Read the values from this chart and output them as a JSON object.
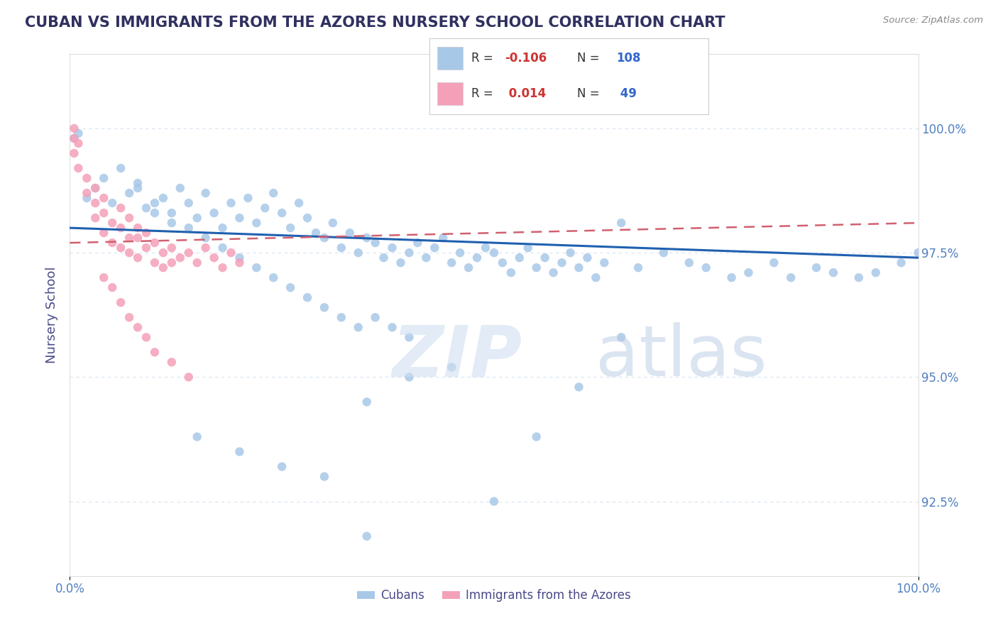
{
  "title": "CUBAN VS IMMIGRANTS FROM THE AZORES NURSERY SCHOOL CORRELATION CHART",
  "source": "Source: ZipAtlas.com",
  "ylabel": "Nursery School",
  "legend_label1": "Cubans",
  "legend_label2": "Immigrants from the Azores",
  "R1": -0.106,
  "N1": 108,
  "R2": 0.014,
  "N2": 49,
  "color_blue": "#a8c8e8",
  "color_pink": "#f4a0b8",
  "color_line_blue": "#2060b0",
  "color_line_pink": "#d06070",
  "color_title": "#303060",
  "color_axis_label": "#4a4a8a",
  "color_tick": "#5080c0",
  "color_grid": "#d8e4f0",
  "watermark_zip": "ZIP",
  "watermark_atlas": "atlas",
  "blue_x": [
    0.005,
    0.01,
    0.02,
    0.03,
    0.04,
    0.05,
    0.06,
    0.07,
    0.08,
    0.09,
    0.1,
    0.11,
    0.12,
    0.13,
    0.14,
    0.15,
    0.16,
    0.17,
    0.18,
    0.19,
    0.2,
    0.21,
    0.22,
    0.23,
    0.24,
    0.25,
    0.26,
    0.27,
    0.28,
    0.29,
    0.3,
    0.31,
    0.32,
    0.33,
    0.34,
    0.35,
    0.36,
    0.37,
    0.38,
    0.39,
    0.4,
    0.41,
    0.42,
    0.43,
    0.44,
    0.45,
    0.46,
    0.47,
    0.48,
    0.49,
    0.5,
    0.51,
    0.52,
    0.53,
    0.54,
    0.55,
    0.56,
    0.57,
    0.58,
    0.59,
    0.6,
    0.61,
    0.62,
    0.63,
    0.65,
    0.67,
    0.7,
    0.73,
    0.75,
    0.78,
    0.8,
    0.83,
    0.85,
    0.88,
    0.9,
    0.93,
    0.95,
    0.98,
    1.0,
    0.08,
    0.1,
    0.12,
    0.14,
    0.16,
    0.18,
    0.2,
    0.22,
    0.24,
    0.26,
    0.28,
    0.3,
    0.32,
    0.34,
    0.36,
    0.38,
    0.4,
    0.15,
    0.2,
    0.25,
    0.3,
    0.35,
    0.4,
    0.45,
    0.5,
    0.55,
    0.6,
    0.65,
    0.35
  ],
  "blue_y": [
    99.8,
    99.9,
    98.6,
    98.8,
    99.0,
    98.5,
    99.2,
    98.7,
    98.9,
    98.4,
    98.3,
    98.6,
    98.1,
    98.8,
    98.5,
    98.2,
    98.7,
    98.3,
    98.0,
    98.5,
    98.2,
    98.6,
    98.1,
    98.4,
    98.7,
    98.3,
    98.0,
    98.5,
    98.2,
    97.9,
    97.8,
    98.1,
    97.6,
    97.9,
    97.5,
    97.8,
    97.7,
    97.4,
    97.6,
    97.3,
    97.5,
    97.7,
    97.4,
    97.6,
    97.8,
    97.3,
    97.5,
    97.2,
    97.4,
    97.6,
    97.5,
    97.3,
    97.1,
    97.4,
    97.6,
    97.2,
    97.4,
    97.1,
    97.3,
    97.5,
    97.2,
    97.4,
    97.0,
    97.3,
    98.1,
    97.2,
    97.5,
    97.3,
    97.2,
    97.0,
    97.1,
    97.3,
    97.0,
    97.2,
    97.1,
    97.0,
    97.1,
    97.3,
    97.5,
    98.8,
    98.5,
    98.3,
    98.0,
    97.8,
    97.6,
    97.4,
    97.2,
    97.0,
    96.8,
    96.6,
    96.4,
    96.2,
    96.0,
    96.2,
    96.0,
    95.8,
    93.8,
    93.5,
    93.2,
    93.0,
    94.5,
    95.0,
    95.2,
    92.5,
    93.8,
    94.8,
    95.8,
    91.8
  ],
  "pink_x": [
    0.005,
    0.005,
    0.005,
    0.01,
    0.01,
    0.02,
    0.02,
    0.03,
    0.03,
    0.03,
    0.04,
    0.04,
    0.04,
    0.05,
    0.05,
    0.06,
    0.06,
    0.06,
    0.07,
    0.07,
    0.07,
    0.08,
    0.08,
    0.08,
    0.09,
    0.09,
    0.1,
    0.1,
    0.11,
    0.11,
    0.12,
    0.12,
    0.13,
    0.14,
    0.15,
    0.16,
    0.17,
    0.18,
    0.19,
    0.2,
    0.04,
    0.05,
    0.06,
    0.07,
    0.08,
    0.09,
    0.1,
    0.12,
    0.14
  ],
  "pink_y": [
    100.0,
    99.8,
    99.5,
    99.7,
    99.2,
    99.0,
    98.7,
    98.5,
    98.2,
    98.8,
    98.3,
    98.6,
    97.9,
    98.1,
    97.7,
    98.4,
    98.0,
    97.6,
    97.8,
    98.2,
    97.5,
    97.8,
    98.0,
    97.4,
    97.9,
    97.6,
    97.3,
    97.7,
    97.5,
    97.2,
    97.6,
    97.3,
    97.4,
    97.5,
    97.3,
    97.6,
    97.4,
    97.2,
    97.5,
    97.3,
    97.0,
    96.8,
    96.5,
    96.2,
    96.0,
    95.8,
    95.5,
    95.3,
    95.0
  ],
  "blue_line_x": [
    0.0,
    1.0
  ],
  "blue_line_y": [
    98.0,
    97.4
  ],
  "pink_line_x": [
    0.0,
    1.0
  ],
  "pink_line_y": [
    97.7,
    98.1
  ],
  "xlim": [
    0.0,
    1.0
  ],
  "ylim": [
    91.0,
    101.5
  ],
  "yticks": [
    92.5,
    95.0,
    97.5,
    100.0
  ],
  "xticks": [
    0.0,
    1.0
  ],
  "xtick_labels": [
    "0.0%",
    "100.0%"
  ]
}
